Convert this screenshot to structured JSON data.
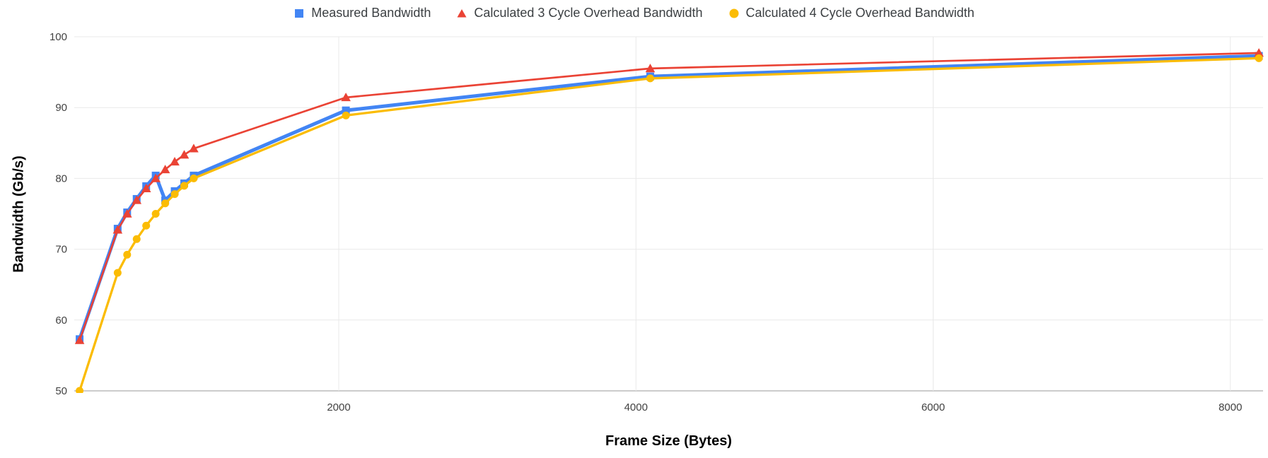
{
  "chart_data": {
    "type": "line",
    "title": "",
    "xlabel": "Frame Size (Bytes)",
    "ylabel": "Bandwidth (Gb/s)",
    "legend_position": "top",
    "grid": true,
    "xlim": [
      220,
      8220
    ],
    "ylim": [
      50,
      100
    ],
    "x_ticks": [
      "2000",
      "4000",
      "6000",
      "8000"
    ],
    "x_tick_values": [
      2000,
      4000,
      6000,
      8000
    ],
    "y_ticks": [
      "50",
      "60",
      "70",
      "80",
      "90",
      "100"
    ],
    "y_tick_values": [
      50,
      60,
      70,
      80,
      90,
      100
    ],
    "x": [
      256,
      512,
      576,
      640,
      704,
      768,
      832,
      896,
      960,
      1024,
      2048,
      4096,
      8192
    ],
    "series": [
      {
        "name": "Measured Bandwidth",
        "color": "#4285f4",
        "marker": "square",
        "values": [
          57.3,
          72.9,
          75.2,
          77.1,
          78.9,
          80.4,
          76.9,
          78.2,
          79.3,
          80.4,
          89.6,
          94.4,
          97.3
        ]
      },
      {
        "name": "Calculated 3 Cycle Overhead Bandwidth",
        "color": "#ea4335",
        "marker": "triangle",
        "values": [
          57.14,
          72.73,
          75.0,
          76.92,
          78.57,
          80.0,
          81.25,
          82.35,
          83.33,
          84.21,
          91.43,
          95.52,
          97.71
        ]
      },
      {
        "name": "Calculated 4 Cycle Overhead Bandwidth",
        "color": "#fbbc04",
        "marker": "circle",
        "values": [
          50.0,
          66.67,
          69.23,
          71.43,
          73.33,
          75.0,
          76.47,
          77.78,
          78.95,
          80.0,
          88.89,
          94.12,
          96.97
        ]
      }
    ],
    "colors": {
      "gridline": "#e9e9e9",
      "baseline": "#cccccc",
      "tick_label": "#424242",
      "legend_text": "#3c4043",
      "background": "#ffffff"
    }
  }
}
